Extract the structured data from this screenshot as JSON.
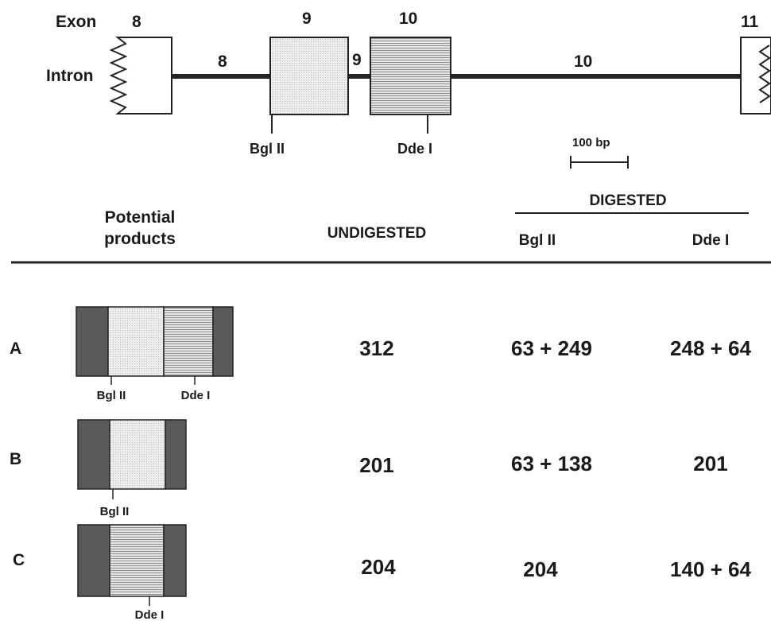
{
  "gene_map": {
    "exon_label": "Exon",
    "intron_label": "Intron",
    "exon_numbers": [
      "8",
      "9",
      "10",
      "11"
    ],
    "intron_numbers": [
      "8",
      "9",
      "10"
    ],
    "sites": {
      "bgl": "Bgl II",
      "dde": "Dde I"
    },
    "scale_label": "100 bp"
  },
  "table": {
    "header": {
      "products": [
        "Potential",
        "products"
      ],
      "undigested": "UNDIGESTED",
      "digested": "DIGESTED",
      "bgl": "Bgl II",
      "dde": "Dde I"
    },
    "rows": [
      {
        "label": "A",
        "undigested": "312",
        "bgl": "63 + 249",
        "dde": "248 + 64",
        "sites": [
          "Bgl II",
          "Dde I"
        ]
      },
      {
        "label": "B",
        "undigested": "201",
        "bgl": "63 + 138",
        "dde": "201",
        "sites": [
          "Bgl II"
        ]
      },
      {
        "label": "C",
        "undigested": "204",
        "bgl": "204",
        "dde": "140 + 64",
        "sites": [
          "Dde I"
        ]
      }
    ]
  },
  "colors": {
    "dark_exon": "#5a5a5a",
    "light_exon": "#e6e6e6",
    "striped_exon": "#c9c9c9",
    "line": "#222222"
  }
}
